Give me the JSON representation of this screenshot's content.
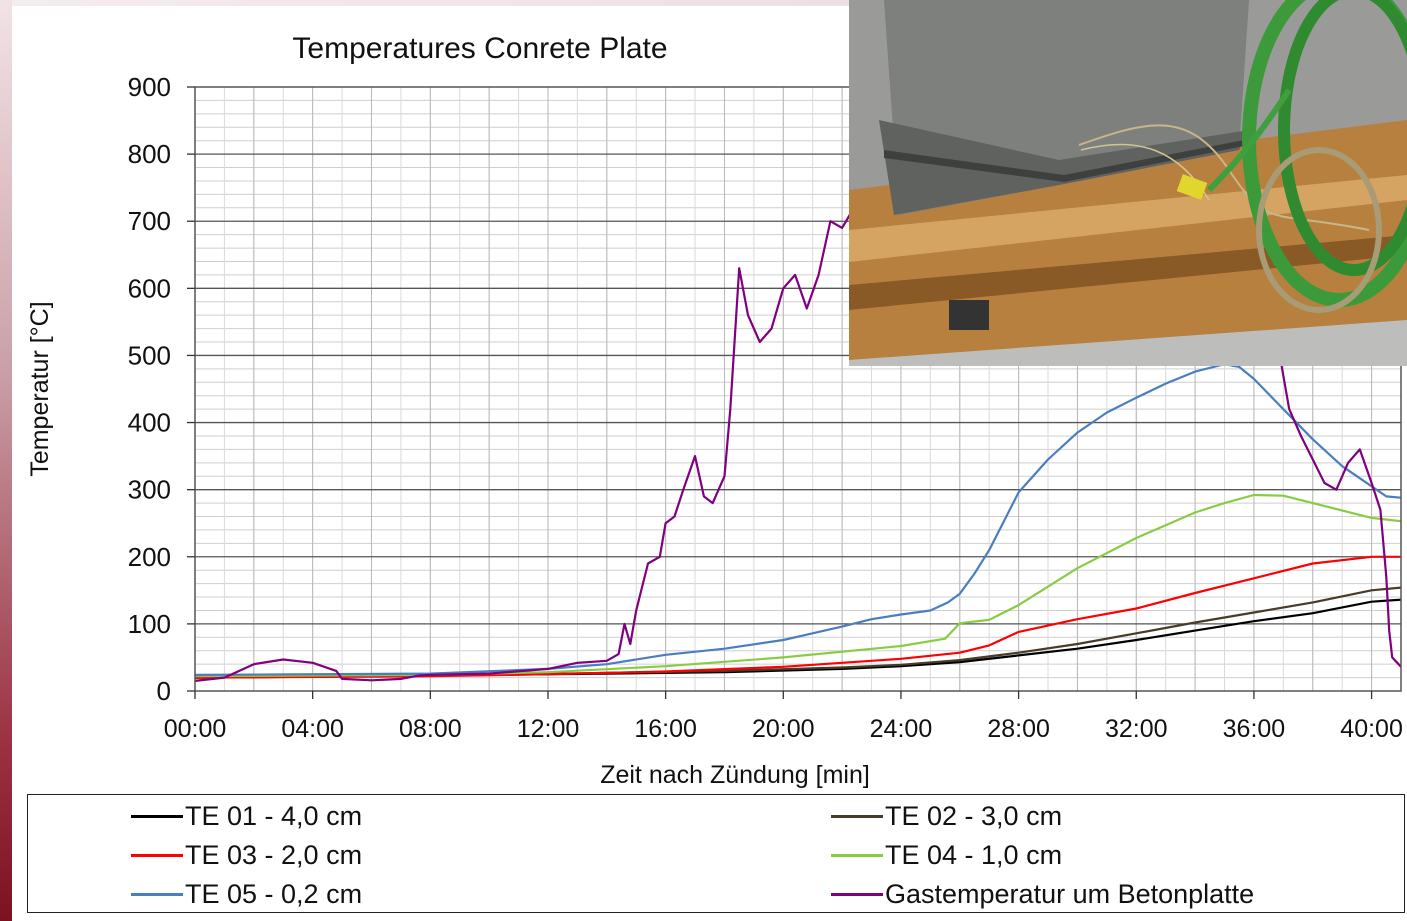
{
  "chart_data": {
    "type": "line",
    "title": "Temperatures Conrete Plate",
    "xlabel": "Zeit nach Zündung [min]",
    "ylabel": "Temperatur [°C]",
    "xlim": [
      0,
      41
    ],
    "ylim": [
      0,
      900
    ],
    "x_ticks": [
      "00:00",
      "04:00",
      "08:00",
      "12:00",
      "16:00",
      "20:00",
      "24:00",
      "28:00",
      "32:00",
      "36:00",
      "40:00"
    ],
    "y_ticks": [
      "0",
      "100",
      "200",
      "300",
      "400",
      "500",
      "600",
      "700",
      "800",
      "900"
    ],
    "grid": true,
    "legend_position": "bottom",
    "series": [
      {
        "name": "TE 01 - 4,0 cm",
        "color": "#000000",
        "points": [
          [
            0,
            20
          ],
          [
            6,
            22
          ],
          [
            10,
            24
          ],
          [
            14,
            26
          ],
          [
            18,
            28
          ],
          [
            22,
            33
          ],
          [
            24,
            37
          ],
          [
            26,
            43
          ],
          [
            28,
            53
          ],
          [
            30,
            63
          ],
          [
            32,
            76
          ],
          [
            34,
            90
          ],
          [
            36,
            104
          ],
          [
            38,
            116
          ],
          [
            40,
            133
          ],
          [
            41,
            136
          ]
        ]
      },
      {
        "name": "TE 02 - 3,0 cm",
        "color": "#4a3a28",
        "points": [
          [
            0,
            20
          ],
          [
            6,
            22
          ],
          [
            10,
            24
          ],
          [
            14,
            27
          ],
          [
            18,
            30
          ],
          [
            22,
            35
          ],
          [
            24,
            39
          ],
          [
            26,
            46
          ],
          [
            28,
            57
          ],
          [
            30,
            70
          ],
          [
            32,
            86
          ],
          [
            34,
            102
          ],
          [
            36,
            117
          ],
          [
            38,
            132
          ],
          [
            40,
            150
          ],
          [
            41,
            154
          ]
        ]
      },
      {
        "name": "TE 03 - 2,0 cm",
        "color": "#ff0000",
        "points": [
          [
            0,
            20
          ],
          [
            8,
            22
          ],
          [
            12,
            25
          ],
          [
            16,
            29
          ],
          [
            20,
            36
          ],
          [
            24,
            48
          ],
          [
            26,
            57
          ],
          [
            27,
            68
          ],
          [
            28,
            88
          ],
          [
            30,
            107
          ],
          [
            32,
            123
          ],
          [
            34,
            146
          ],
          [
            36,
            168
          ],
          [
            38,
            190
          ],
          [
            40,
            200
          ],
          [
            41,
            200
          ]
        ]
      },
      {
        "name": "TE 04 - 1,0 cm",
        "color": "#88cc44",
        "points": [
          [
            0,
            22
          ],
          [
            8,
            24
          ],
          [
            12,
            28
          ],
          [
            16,
            37
          ],
          [
            20,
            50
          ],
          [
            24,
            67
          ],
          [
            25.5,
            78
          ],
          [
            26,
            101
          ],
          [
            27,
            106
          ],
          [
            28,
            128
          ],
          [
            30,
            183
          ],
          [
            32,
            228
          ],
          [
            34,
            266
          ],
          [
            35,
            280
          ],
          [
            36,
            292
          ],
          [
            37,
            291
          ],
          [
            38,
            280
          ],
          [
            40,
            258
          ],
          [
            41,
            253
          ]
        ]
      },
      {
        "name": "TE 05 - 0,2 cm",
        "color": "#4a7ec0",
        "points": [
          [
            0,
            24
          ],
          [
            8,
            26
          ],
          [
            12,
            33
          ],
          [
            14,
            40
          ],
          [
            16,
            54
          ],
          [
            18,
            63
          ],
          [
            20,
            76
          ],
          [
            22,
            96
          ],
          [
            23,
            107
          ],
          [
            24,
            114
          ],
          [
            25,
            120
          ],
          [
            25.6,
            132
          ],
          [
            26,
            145
          ],
          [
            26.5,
            175
          ],
          [
            27,
            210
          ],
          [
            28,
            296
          ],
          [
            29,
            345
          ],
          [
            30,
            385
          ],
          [
            31,
            415
          ],
          [
            32,
            437
          ],
          [
            33,
            458
          ],
          [
            34,
            476
          ],
          [
            35,
            487
          ],
          [
            35.5,
            483
          ],
          [
            36,
            465
          ],
          [
            37,
            420
          ],
          [
            38,
            375
          ],
          [
            39,
            335
          ],
          [
            40,
            305
          ],
          [
            40.5,
            290
          ],
          [
            41,
            288
          ]
        ]
      },
      {
        "name": "Gastemperatur um Betonplatte",
        "color": "#800080",
        "points": [
          [
            0,
            15
          ],
          [
            1,
            20
          ],
          [
            2,
            40
          ],
          [
            3,
            47
          ],
          [
            4,
            42
          ],
          [
            4.8,
            30
          ],
          [
            5,
            18
          ],
          [
            6,
            16
          ],
          [
            7,
            18
          ],
          [
            7.6,
            23
          ],
          [
            8,
            24
          ],
          [
            10,
            26
          ],
          [
            12,
            33
          ],
          [
            13,
            42
          ],
          [
            14,
            45
          ],
          [
            14.4,
            55
          ],
          [
            14.6,
            100
          ],
          [
            14.8,
            70
          ],
          [
            15,
            120
          ],
          [
            15.4,
            190
          ],
          [
            15.8,
            200
          ],
          [
            16,
            250
          ],
          [
            16.3,
            260
          ],
          [
            16.6,
            300
          ],
          [
            17,
            350
          ],
          [
            17.3,
            290
          ],
          [
            17.6,
            280
          ],
          [
            18,
            320
          ],
          [
            18.2,
            420
          ],
          [
            18.5,
            630
          ],
          [
            18.8,
            560
          ],
          [
            19.2,
            520
          ],
          [
            19.6,
            540
          ],
          [
            20,
            600
          ],
          [
            20.4,
            620
          ],
          [
            20.8,
            570
          ],
          [
            21.2,
            620
          ],
          [
            21.6,
            700
          ],
          [
            22,
            690
          ],
          [
            22.4,
            720
          ],
          [
            22.8,
            760
          ],
          [
            36.8,
            520
          ],
          [
            37.0,
            470
          ],
          [
            37.2,
            420
          ],
          [
            37.6,
            380
          ],
          [
            38,
            345
          ],
          [
            38.4,
            310
          ],
          [
            38.8,
            300
          ],
          [
            39.2,
            340
          ],
          [
            39.6,
            360
          ],
          [
            40,
            310
          ],
          [
            40.3,
            270
          ],
          [
            40.5,
            170
          ],
          [
            40.6,
            90
          ],
          [
            40.7,
            50
          ],
          [
            41,
            36
          ]
        ]
      }
    ]
  },
  "legend": [
    {
      "label": "TE 01 - 4,0 cm",
      "color": "#000000"
    },
    {
      "label": "TE 02 - 3,0 cm",
      "color": "#4a3a28"
    },
    {
      "label": "TE 03 - 2,0 cm",
      "color": "#ff0000"
    },
    {
      "label": "TE 04 - 1,0 cm",
      "color": "#88cc44"
    },
    {
      "label": "TE 05 - 0,2 cm",
      "color": "#4a7ec0"
    },
    {
      "label": "Gastemperatur um Betonplatte",
      "color": "#800080"
    }
  ]
}
